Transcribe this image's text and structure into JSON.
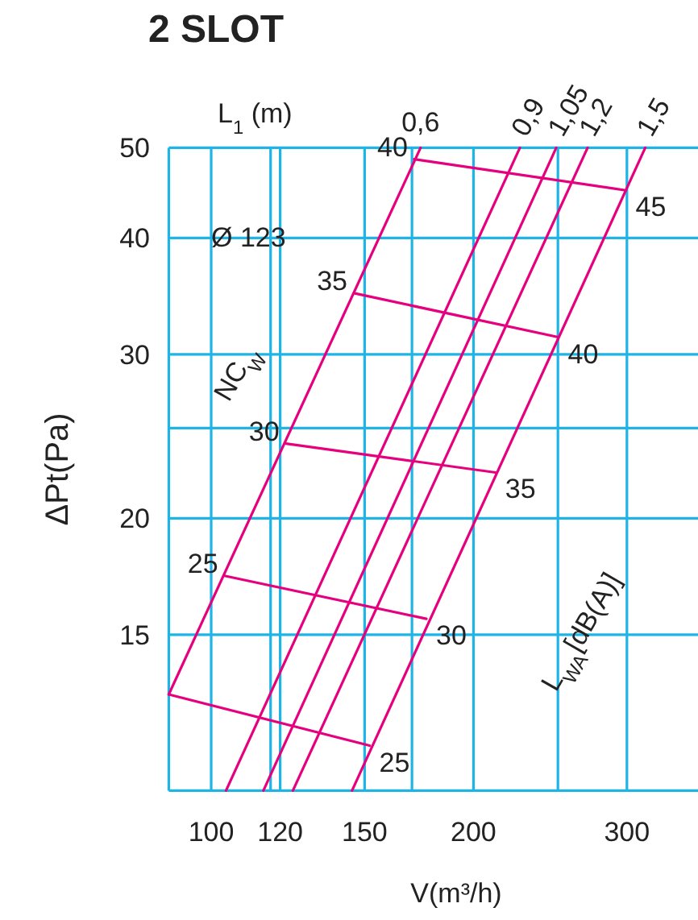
{
  "chart_data": {
    "type": "line",
    "title": "2 SLOT",
    "xlabel": "V(m³/h)",
    "ylabel": "ΔPt(Pa)",
    "log": "xy",
    "grid": true,
    "xlim": [
      89.4,
      362
    ],
    "ylim": [
      10.2,
      50
    ],
    "xticks": [
      100,
      {
        "value": 117,
        "label": null
      },
      120,
      150,
      {
        "value": 170,
        "label": null
      },
      200,
      {
        "value": 250,
        "label": null
      },
      300
    ],
    "yticks": [
      15,
      20,
      {
        "value": 25,
        "label": null
      },
      30,
      40,
      50
    ],
    "series": [
      {
        "name": "0,6",
        "color": "#e6007e",
        "x": [
          89.4,
          173.9
        ],
        "values": [
          12.94,
          50
        ]
      },
      {
        "name": "0,9",
        "color": "#e6007e",
        "x": [
          104,
          226.1
        ],
        "values": [
          10.2,
          50
        ]
      },
      {
        "name": "1,05",
        "color": "#e6007e",
        "x": [
          114.8,
          248.9
        ],
        "values": [
          10.2,
          50
        ]
      },
      {
        "name": "1,2",
        "color": "#e6007e",
        "x": [
          124.1,
          270.4
        ],
        "values": [
          10.2,
          50
        ]
      },
      {
        "name": "1,5",
        "color": "#e6007e",
        "x": [
          145.1,
          314.9
        ],
        "values": [
          10.2,
          50
        ]
      },
      {
        "color": "#e6007e",
        "x": [
          171,
          299.2
        ],
        "values": [
          48.6,
          45
        ]
      },
      {
        "color": "#e6007e",
        "x": [
          145.8,
          250.2
        ],
        "values": [
          34.9,
          31.3
        ]
      },
      {
        "color": "#e6007e",
        "x": [
          121.8,
          212
        ],
        "values": [
          24.06,
          22.4
        ]
      },
      {
        "color": "#e6007e",
        "x": [
          103.6,
          176.6
        ],
        "values": [
          17.35,
          15.6
        ]
      },
      {
        "color": "#e6007e",
        "x": [
          89.4,
          152
        ],
        "values": [
          12.94,
          11.4
        ]
      }
    ],
    "annotations": [
      "L$_{1}$ (m)",
      "Ø 123",
      "NC$_{W}$",
      "L$_{WA}$[dB(A)]",
      {
        "text": "40",
        "x": 171,
        "y": 48.6
      },
      {
        "text": "35",
        "x": 145.8,
        "y": 34.9
      },
      {
        "text": "30",
        "x": 121.8,
        "y": 24.06
      },
      {
        "text": "25",
        "x": 103.6,
        "y": 17.35
      },
      {
        "text": "45",
        "x": 299.2,
        "y": 45
      },
      {
        "text": "40",
        "x": 250.2,
        "y": 31.3
      },
      {
        "text": "35",
        "x": 212,
        "y": 22.4
      },
      {
        "text": "30",
        "x": 176.6,
        "y": 15.6
      },
      {
        "text": "25",
        "x": 152,
        "y": 11.4
      }
    ]
  }
}
